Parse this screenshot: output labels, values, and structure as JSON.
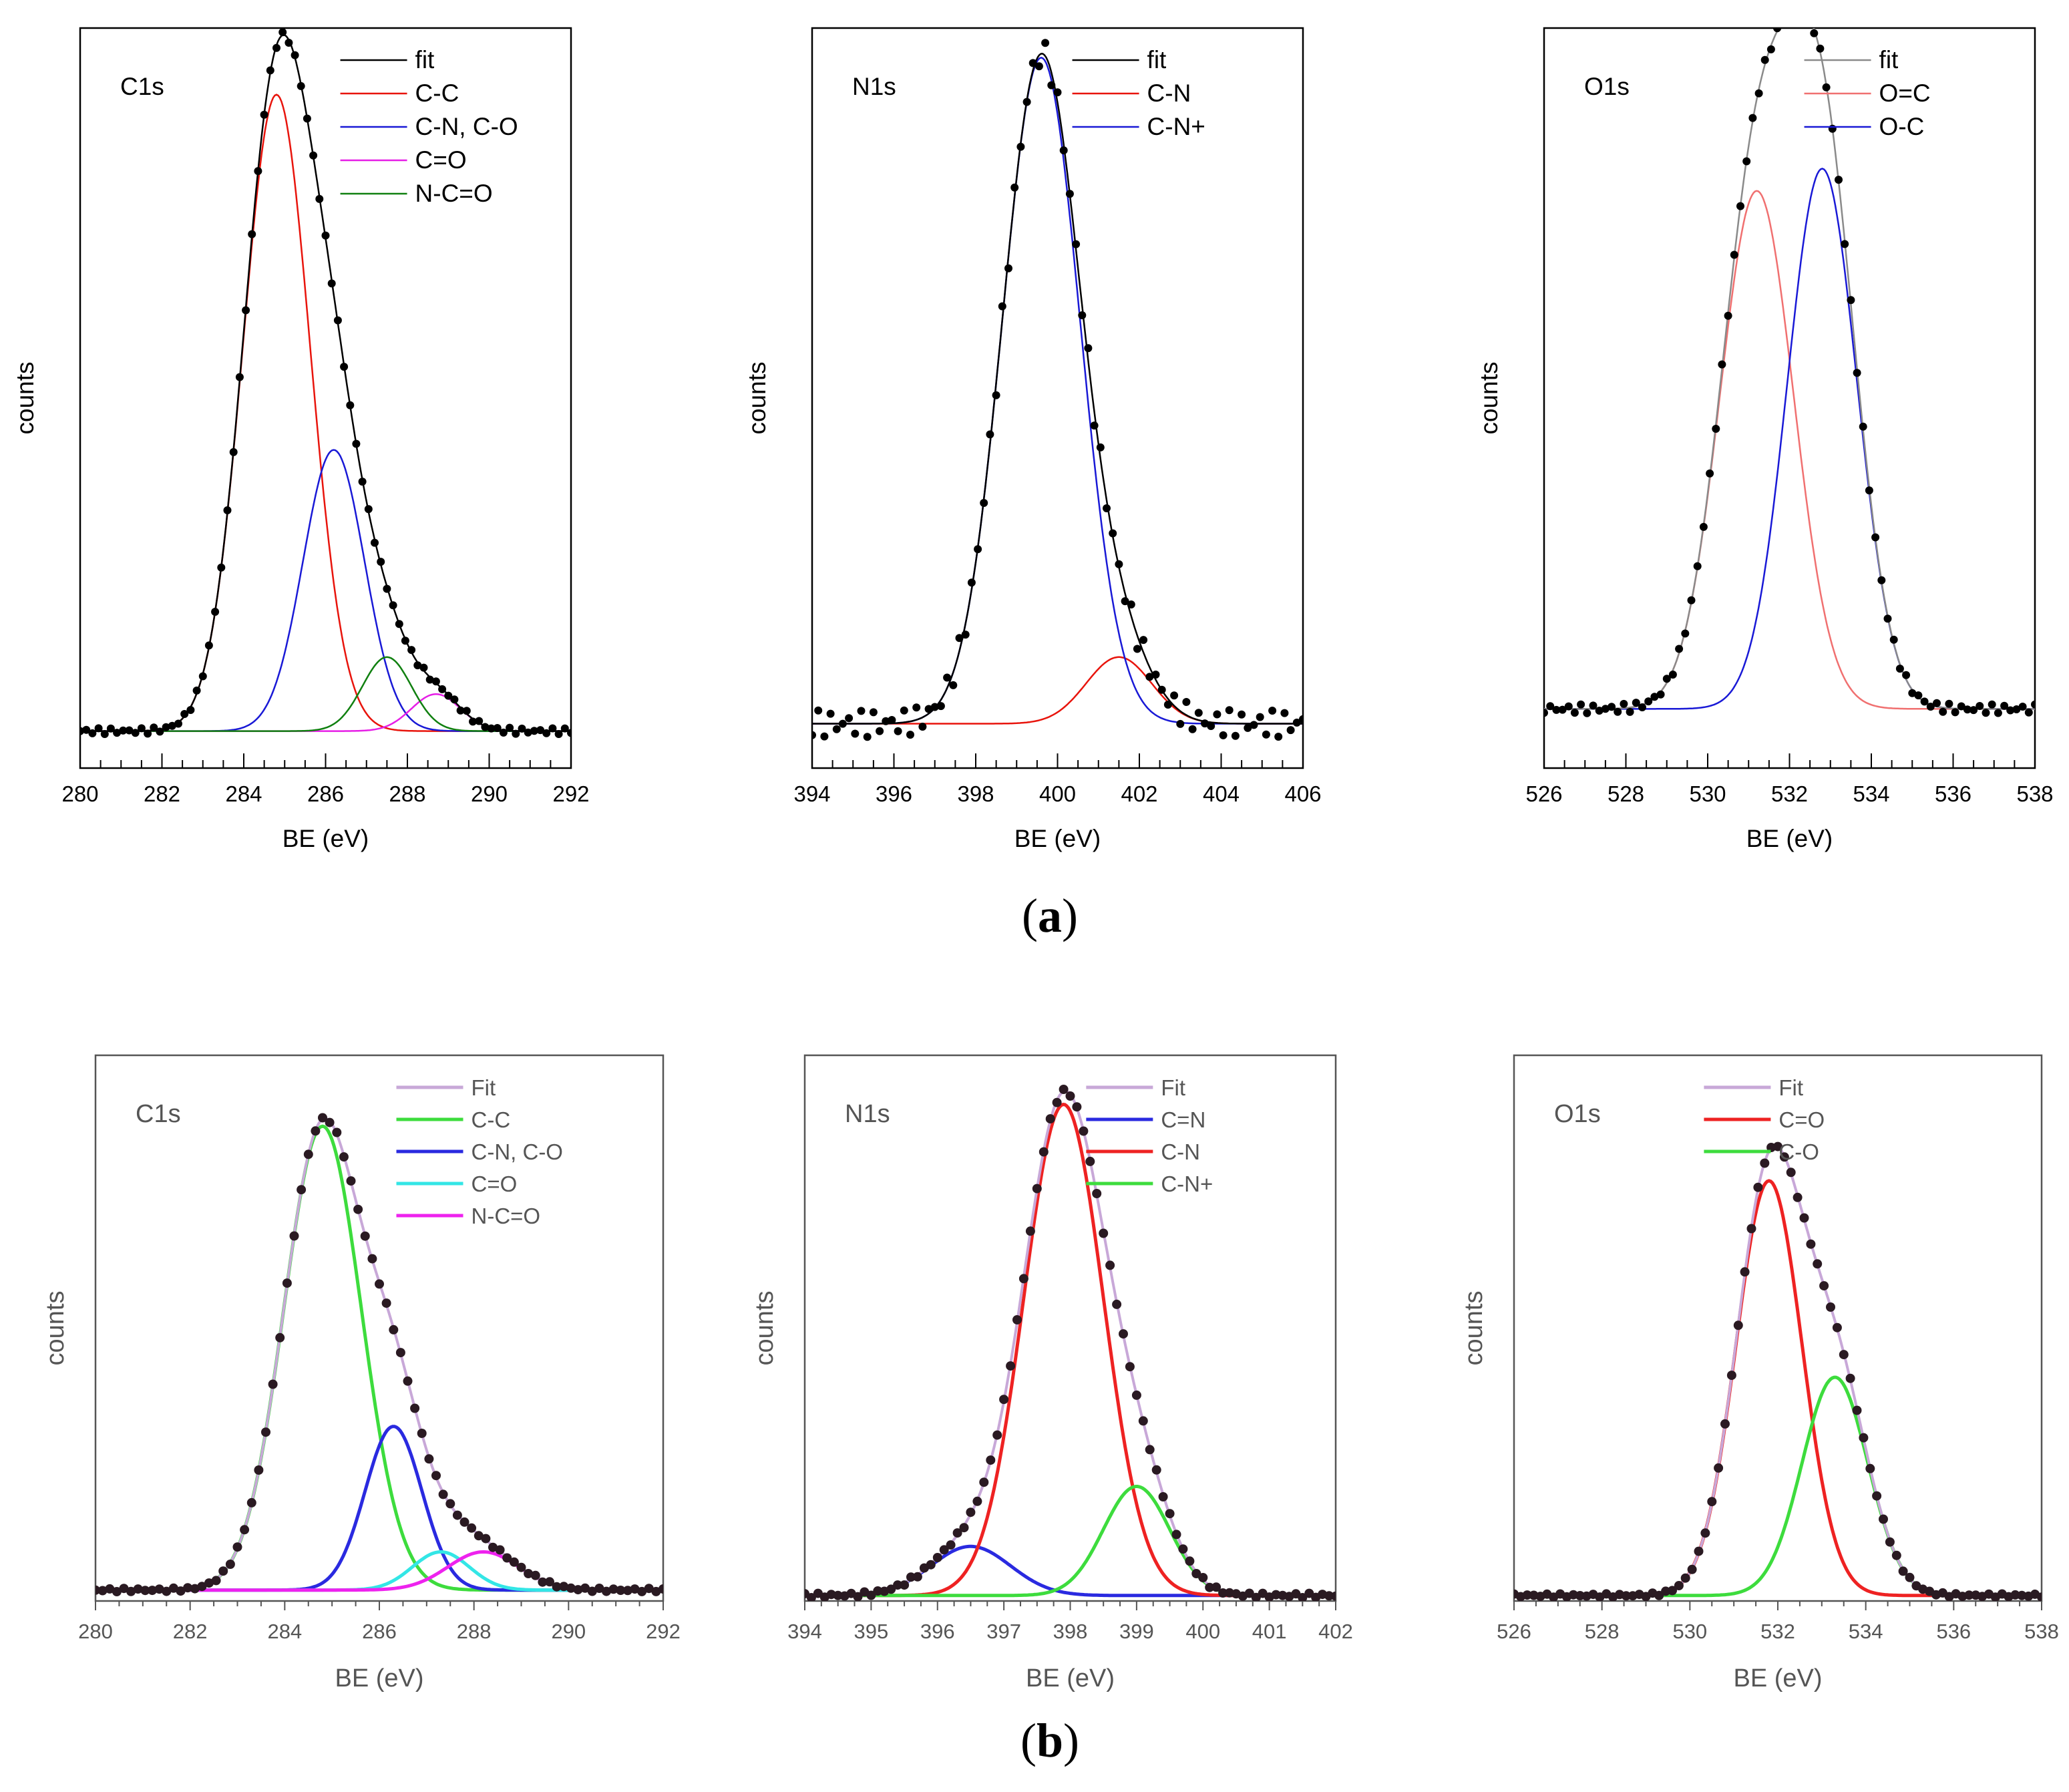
{
  "figure": {
    "caption_a": "a",
    "caption_b": "b"
  },
  "chart_data": [
    {
      "type": "line",
      "row": "a",
      "label": "C1s",
      "xlabel": "BE (eV)",
      "ylabel": "counts",
      "xlim": [
        280,
        292
      ],
      "ylim": [
        0,
        1.0
      ],
      "xticks": [
        280,
        282,
        284,
        286,
        288,
        290,
        292
      ],
      "xtick_labels": [
        "280",
        "282",
        "284",
        "286",
        "288",
        "290",
        "292"
      ],
      "legend_position": "top-right",
      "baseline": 0.05,
      "noise": 0.004,
      "fit_color": "#000000",
      "series": [
        {
          "name": "fit",
          "color": "#000000"
        },
        {
          "name": "C-C",
          "color": "#e8140c",
          "center": 284.8,
          "height": 0.86,
          "width": 0.82
        },
        {
          "name": "C-N, C-O",
          "color": "#1919d6",
          "center": 286.2,
          "height": 0.38,
          "width": 0.75
        },
        {
          "name": "C=O",
          "color": "#e61ee6",
          "center": 288.7,
          "height": 0.05,
          "width": 0.6
        },
        {
          "name": "N-C=O",
          "color": "#108010",
          "center": 287.5,
          "height": 0.1,
          "width": 0.6
        }
      ]
    },
    {
      "type": "line",
      "row": "a",
      "label": "N1s",
      "xlabel": "BE (eV)",
      "ylabel": "counts",
      "xlim": [
        394,
        406
      ],
      "ylim": [
        0,
        1.0
      ],
      "xticks": [
        394,
        396,
        398,
        400,
        402,
        404,
        406
      ],
      "xtick_labels": [
        "394",
        "396",
        "398",
        "400",
        "402",
        "404",
        "406"
      ],
      "legend_position": "top-right",
      "baseline": 0.06,
      "noise": 0.018,
      "fit_color": "#000000",
      "series": [
        {
          "name": "fit",
          "color": "#000000"
        },
        {
          "name": "C-N",
          "color": "#e8140c",
          "center": 401.5,
          "height": 0.09,
          "width": 0.8
        },
        {
          "name": "C-N+",
          "color": "#1919d6",
          "center": 399.6,
          "height": 0.9,
          "width": 0.95
        }
      ]
    },
    {
      "type": "line",
      "row": "a",
      "label": "O1s",
      "xlabel": "BE (eV)",
      "ylabel": "counts",
      "xlim": [
        526,
        538
      ],
      "ylim": [
        0,
        1.0
      ],
      "xticks": [
        526,
        528,
        530,
        532,
        534,
        536,
        538
      ],
      "xtick_labels": [
        "526",
        "528",
        "530",
        "532",
        "534",
        "536",
        "538"
      ],
      "legend_position": "top-right",
      "baseline": 0.08,
      "noise": 0.006,
      "fit_color": "#8a8a8a",
      "series": [
        {
          "name": "fit",
          "color": "#8a8a8a"
        },
        {
          "name": "O=C",
          "color": "#f07070",
          "center": 531.2,
          "height": 0.7,
          "width": 0.9
        },
        {
          "name": "O-C",
          "color": "#1919d6",
          "center": 532.8,
          "height": 0.73,
          "width": 0.85
        }
      ]
    },
    {
      "type": "line",
      "row": "b",
      "label": "C1s",
      "xlabel": "BE (eV)",
      "ylabel": "counts",
      "xlim": [
        280,
        292
      ],
      "ylim": [
        0,
        1.0
      ],
      "xticks": [
        280,
        282,
        284,
        286,
        288,
        290,
        292
      ],
      "xtick_labels": [
        "280",
        "282",
        "284",
        "286",
        "288",
        "290",
        "292"
      ],
      "legend_position": "top-right",
      "baseline": 0.02,
      "noise": 0.003,
      "fit_color": "#c8a8d8",
      "series": [
        {
          "name": "Fit",
          "color": "#c8a8d8"
        },
        {
          "name": "C-C",
          "color": "#3ddc3d",
          "center": 284.8,
          "height": 0.85,
          "width": 0.82
        },
        {
          "name": "C-N, C-O",
          "color": "#2a2ae0",
          "center": 286.3,
          "height": 0.3,
          "width": 0.6
        },
        {
          "name": "C=O",
          "color": "#33e6e6",
          "center": 287.3,
          "height": 0.07,
          "width": 0.6
        },
        {
          "name": "N-C=O",
          "color": "#ee22ee",
          "center": 288.2,
          "height": 0.07,
          "width": 0.75
        }
      ]
    },
    {
      "type": "line",
      "row": "b",
      "label": "N1s",
      "xlabel": "BE (eV)",
      "ylabel": "counts",
      "xlim": [
        394,
        402
      ],
      "ylim": [
        0,
        1.0
      ],
      "xticks": [
        394,
        395,
        396,
        397,
        398,
        399,
        400,
        401,
        402
      ],
      "xtick_labels": [
        "394",
        "395",
        "396",
        "397",
        "398",
        "399",
        "400",
        "401",
        "402"
      ],
      "legend_position": "top-right",
      "baseline": 0.01,
      "noise": 0.004,
      "fit_color": "#c8a8d8",
      "series": [
        {
          "name": "Fit",
          "color": "#c8a8d8"
        },
        {
          "name": "C=N",
          "color": "#2a2ae0",
          "center": 396.5,
          "height": 0.09,
          "width": 0.6
        },
        {
          "name": "C-N",
          "color": "#ee2222",
          "center": 397.9,
          "height": 0.9,
          "width": 0.6
        },
        {
          "name": "C-N+",
          "color": "#3ddc3d",
          "center": 399.0,
          "height": 0.2,
          "width": 0.5
        }
      ]
    },
    {
      "type": "line",
      "row": "b",
      "label": "O1s",
      "xlabel": "BE (eV)",
      "ylabel": "counts",
      "xlim": [
        526,
        538
      ],
      "ylim": [
        0,
        1.0
      ],
      "xticks": [
        526,
        528,
        530,
        532,
        534,
        536,
        538
      ],
      "xtick_labels": [
        "526",
        "528",
        "530",
        "532",
        "534",
        "536",
        "538"
      ],
      "legend_position": "top-left",
      "baseline": 0.01,
      "noise": 0.003,
      "fit_color": "#c8a8d8",
      "series": [
        {
          "name": "Fit",
          "color": "#c8a8d8"
        },
        {
          "name": "C=O",
          "color": "#ee2222",
          "center": 531.8,
          "height": 0.76,
          "width": 0.75
        },
        {
          "name": "C-O",
          "color": "#3ddc3d",
          "center": 533.3,
          "height": 0.4,
          "width": 0.75
        }
      ]
    }
  ]
}
